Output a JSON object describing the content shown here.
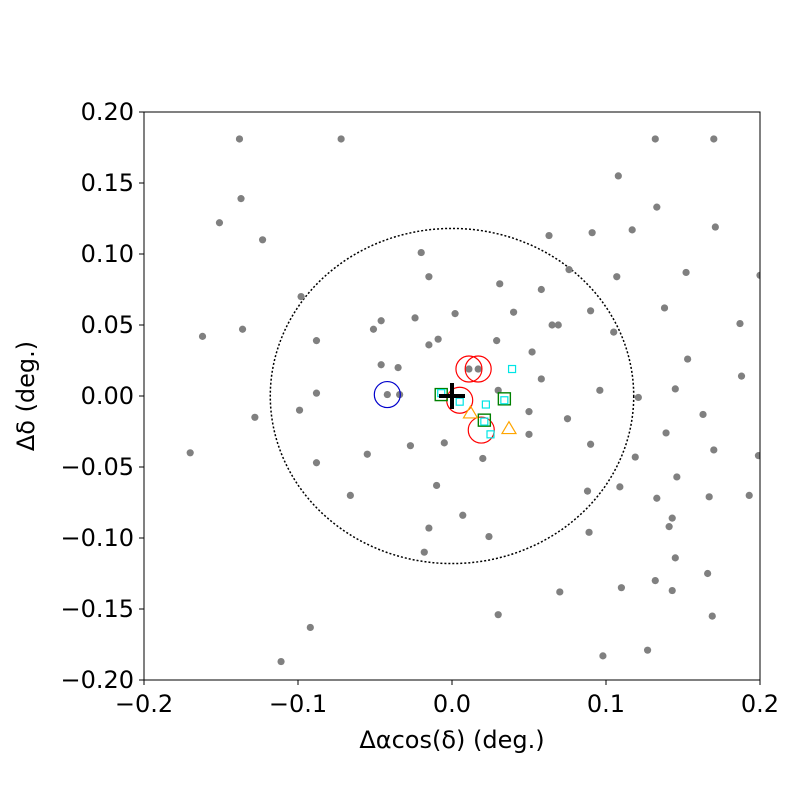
{
  "chart_data": {
    "type": "scatter",
    "xlabel": "Δαcos(δ) (deg.)",
    "ylabel": "Δδ (deg.)",
    "xlim": [
      -0.2,
      0.2
    ],
    "ylim": [
      -0.2,
      0.2
    ],
    "grid": false,
    "x_ticks": [
      -0.2,
      -0.1,
      0.0,
      0.1,
      0.2
    ],
    "x_tick_labels": [
      "−0.2",
      "−0.1",
      "0.0",
      "0.1",
      "0.2"
    ],
    "y_ticks": [
      -0.2,
      -0.15,
      -0.1,
      -0.05,
      0.0,
      0.05,
      0.1,
      0.15,
      0.2
    ],
    "y_tick_labels": [
      "−0.20",
      "−0.15",
      "−0.10",
      "−0.05",
      "0.00",
      "0.05",
      "0.10",
      "0.15",
      "0.20"
    ],
    "center_marker": {
      "x": 0.0,
      "y": 0.0,
      "color": "#000000",
      "symbol": "plus"
    },
    "dashed_circle": {
      "center": [
        0.0,
        0.0
      ],
      "radius": 0.118,
      "color": "#000000",
      "style": "dotted"
    },
    "series": [
      {
        "marker": "filled-circle",
        "color": "#808080",
        "points": [
          [
            -0.138,
            0.181
          ],
          [
            -0.072,
            0.181
          ],
          [
            0.132,
            0.181
          ],
          [
            0.17,
            0.181
          ],
          [
            0.108,
            0.155
          ],
          [
            -0.137,
            0.139
          ],
          [
            0.133,
            0.133
          ],
          [
            -0.151,
            0.122
          ],
          [
            0.171,
            0.119
          ],
          [
            -0.123,
            0.11
          ],
          [
            0.117,
            0.117
          ],
          [
            0.091,
            0.115
          ],
          [
            0.063,
            0.113
          ],
          [
            -0.02,
            0.101
          ],
          [
            0.152,
            0.087
          ],
          [
            0.076,
            0.089
          ],
          [
            -0.015,
            0.084
          ],
          [
            0.107,
            0.084
          ],
          [
            0.2,
            0.085
          ],
          [
            0.031,
            0.079
          ],
          [
            0.058,
            0.075
          ],
          [
            -0.098,
            0.07
          ],
          [
            0.138,
            0.062
          ],
          [
            0.04,
            0.059
          ],
          [
            0.002,
            0.058
          ],
          [
            0.09,
            0.06
          ],
          [
            -0.024,
            0.055
          ],
          [
            -0.162,
            0.042
          ],
          [
            -0.136,
            0.047
          ],
          [
            -0.051,
            0.047
          ],
          [
            0.065,
            0.05
          ],
          [
            0.069,
            0.05
          ],
          [
            0.187,
            0.051
          ],
          [
            -0.088,
            0.039
          ],
          [
            -0.015,
            0.036
          ],
          [
            0.029,
            0.039
          ],
          [
            -0.046,
            0.053
          ],
          [
            -0.009,
            0.04
          ],
          [
            0.105,
            0.045
          ],
          [
            0.052,
            0.031
          ],
          [
            -0.046,
            0.022
          ],
          [
            -0.035,
            0.02
          ],
          [
            0.153,
            0.026
          ],
          [
            0.011,
            0.019
          ],
          [
            0.017,
            0.019
          ],
          [
            0.188,
            0.014
          ],
          [
            0.058,
            0.012
          ],
          [
            -0.088,
            0.002
          ],
          [
            -0.042,
            0.001
          ],
          [
            -0.034,
            0.001
          ],
          [
            0.03,
            0.004
          ],
          [
            0.096,
            0.004
          ],
          [
            0.145,
            0.005
          ],
          [
            0.121,
            -0.001
          ],
          [
            -0.099,
            -0.01
          ],
          [
            -0.128,
            -0.015
          ],
          [
            0.05,
            -0.011
          ],
          [
            0.075,
            -0.016
          ],
          [
            0.163,
            -0.013
          ],
          [
            0.199,
            -0.042
          ],
          [
            -0.17,
            -0.04
          ],
          [
            -0.027,
            -0.035
          ],
          [
            -0.005,
            -0.033
          ],
          [
            0.05,
            -0.027
          ],
          [
            0.09,
            -0.034
          ],
          [
            0.139,
            -0.026
          ],
          [
            0.02,
            -0.044
          ],
          [
            0.17,
            -0.038
          ],
          [
            -0.088,
            -0.047
          ],
          [
            -0.055,
            -0.041
          ],
          [
            0.119,
            -0.043
          ],
          [
            0.146,
            -0.057
          ],
          [
            -0.066,
            -0.07
          ],
          [
            -0.01,
            -0.063
          ],
          [
            0.088,
            -0.067
          ],
          [
            0.109,
            -0.064
          ],
          [
            0.133,
            -0.072
          ],
          [
            0.167,
            -0.071
          ],
          [
            0.193,
            -0.07
          ],
          [
            0.007,
            -0.084
          ],
          [
            -0.015,
            -0.093
          ],
          [
            0.141,
            -0.092
          ],
          [
            0.143,
            -0.086
          ],
          [
            0.024,
            -0.099
          ],
          [
            0.089,
            -0.096
          ],
          [
            -0.018,
            -0.11
          ],
          [
            0.145,
            -0.114
          ],
          [
            0.166,
            -0.125
          ],
          [
            0.132,
            -0.13
          ],
          [
            0.11,
            -0.135
          ],
          [
            0.07,
            -0.138
          ],
          [
            0.143,
            -0.137
          ],
          [
            0.03,
            -0.154
          ],
          [
            0.169,
            -0.155
          ],
          [
            -0.092,
            -0.163
          ],
          [
            0.127,
            -0.179
          ],
          [
            0.098,
            -0.183
          ],
          [
            -0.111,
            -0.187
          ]
        ]
      },
      {
        "marker": "open-circle-large",
        "color": "#ff0000",
        "points": [
          [
            0.011,
            0.019
          ],
          [
            0.017,
            0.019
          ],
          [
            0.005,
            -0.003
          ],
          [
            0.019,
            -0.024
          ]
        ]
      },
      {
        "marker": "open-circle-large",
        "color": "#0000cc",
        "points": [
          [
            -0.042,
            0.001
          ]
        ]
      },
      {
        "marker": "open-square",
        "color": "#008000",
        "points": [
          [
            -0.007,
            0.001
          ],
          [
            0.034,
            -0.002
          ],
          [
            0.021,
            -0.017
          ]
        ]
      },
      {
        "marker": "open-square-small",
        "color": "#00e5e5",
        "points": [
          [
            0.039,
            0.019
          ],
          [
            -0.007,
            0.002
          ],
          [
            0.005,
            -0.004
          ],
          [
            0.022,
            -0.006
          ],
          [
            0.034,
            -0.003
          ],
          [
            0.021,
            -0.018
          ],
          [
            0.025,
            -0.027
          ]
        ]
      },
      {
        "marker": "open-triangle",
        "color": "#ffa500",
        "points": [
          [
            0.012,
            -0.012
          ],
          [
            0.037,
            -0.023
          ]
        ]
      }
    ]
  }
}
